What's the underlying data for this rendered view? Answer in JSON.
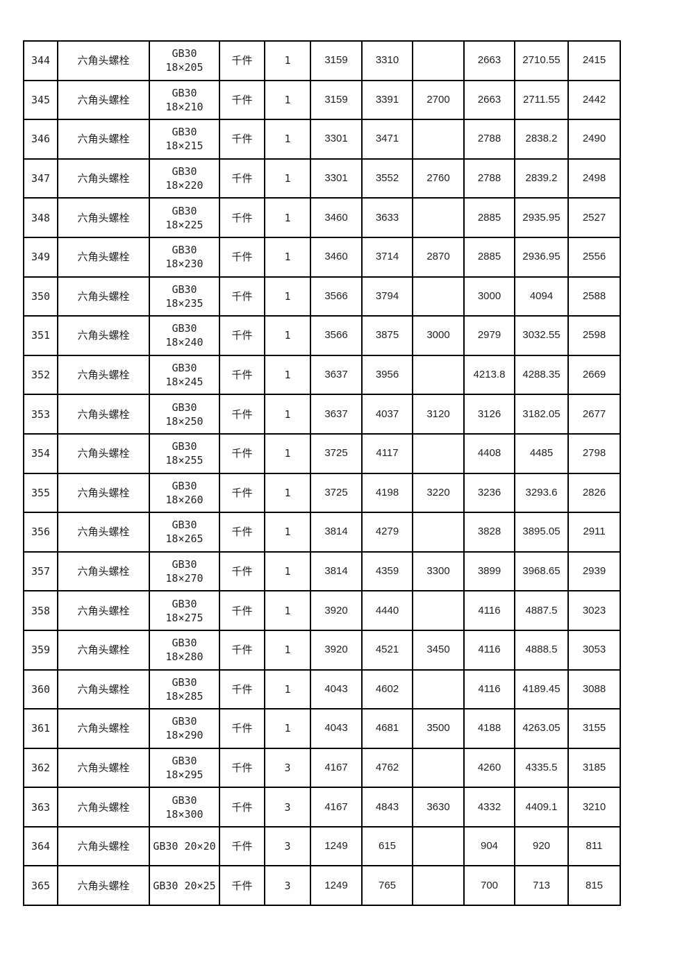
{
  "table": {
    "rows": [
      [
        "344",
        "六角头螺栓",
        "GB30\n18×205",
        "千件",
        "1",
        "3159",
        "3310",
        "",
        "2663",
        "2710.55",
        "2415"
      ],
      [
        "345",
        "六角头螺栓",
        "GB30\n18×210",
        "千件",
        "1",
        "3159",
        "3391",
        "2700",
        "2663",
        "2711.55",
        "2442"
      ],
      [
        "346",
        "六角头螺栓",
        "GB30\n18×215",
        "千件",
        "1",
        "3301",
        "3471",
        "",
        "2788",
        "2838.2",
        "2490"
      ],
      [
        "347",
        "六角头螺栓",
        "GB30\n18×220",
        "千件",
        "1",
        "3301",
        "3552",
        "2760",
        "2788",
        "2839.2",
        "2498"
      ],
      [
        "348",
        "六角头螺栓",
        "GB30\n18×225",
        "千件",
        "1",
        "3460",
        "3633",
        "",
        "2885",
        "2935.95",
        "2527"
      ],
      [
        "349",
        "六角头螺栓",
        "GB30\n18×230",
        "千件",
        "1",
        "3460",
        "3714",
        "2870",
        "2885",
        "2936.95",
        "2556"
      ],
      [
        "350",
        "六角头螺栓",
        "GB30\n18×235",
        "千件",
        "1",
        "3566",
        "3794",
        "",
        "3000",
        "4094",
        "2588"
      ],
      [
        "351",
        "六角头螺栓",
        "GB30\n18×240",
        "千件",
        "1",
        "3566",
        "3875",
        "3000",
        "2979",
        "3032.55",
        "2598"
      ],
      [
        "352",
        "六角头螺栓",
        "GB30\n18×245",
        "千件",
        "1",
        "3637",
        "3956",
        "",
        "4213.8",
        "4288.35",
        "2669"
      ],
      [
        "353",
        "六角头螺栓",
        "GB30\n18×250",
        "千件",
        "1",
        "3637",
        "4037",
        "3120",
        "3126",
        "3182.05",
        "2677"
      ],
      [
        "354",
        "六角头螺栓",
        "GB30\n18×255",
        "千件",
        "1",
        "3725",
        "4117",
        "",
        "4408",
        "4485",
        "2798"
      ],
      [
        "355",
        "六角头螺栓",
        "GB30\n18×260",
        "千件",
        "1",
        "3725",
        "4198",
        "3220",
        "3236",
        "3293.6",
        "2826"
      ],
      [
        "356",
        "六角头螺栓",
        "GB30\n18×265",
        "千件",
        "1",
        "3814",
        "4279",
        "",
        "3828",
        "3895.05",
        "2911"
      ],
      [
        "357",
        "六角头螺栓",
        "GB30\n18×270",
        "千件",
        "1",
        "3814",
        "4359",
        "3300",
        "3899",
        "3968.65",
        "2939"
      ],
      [
        "358",
        "六角头螺栓",
        "GB30\n18×275",
        "千件",
        "1",
        "3920",
        "4440",
        "",
        "4116",
        "4887.5",
        "3023"
      ],
      [
        "359",
        "六角头螺栓",
        "GB30\n18×280",
        "千件",
        "1",
        "3920",
        "4521",
        "3450",
        "4116",
        "4888.5",
        "3053"
      ],
      [
        "360",
        "六角头螺栓",
        "GB30\n18×285",
        "千件",
        "1",
        "4043",
        "4602",
        "",
        "4116",
        "4189.45",
        "3088"
      ],
      [
        "361",
        "六角头螺栓",
        "GB30\n18×290",
        "千件",
        "1",
        "4043",
        "4681",
        "3500",
        "4188",
        "4263.05",
        "3155"
      ],
      [
        "362",
        "六角头螺栓",
        "GB30\n18×295",
        "千件",
        "3",
        "4167",
        "4762",
        "",
        "4260",
        "4335.5",
        "3185"
      ],
      [
        "363",
        "六角头螺栓",
        "GB30\n18×300",
        "千件",
        "3",
        "4167",
        "4843",
        "3630",
        "4332",
        "4409.1",
        "3210"
      ],
      [
        "364",
        "六角头螺栓",
        "GB30 20×20",
        "千件",
        "3",
        "1249",
        "615",
        "",
        "904",
        "920",
        "811"
      ],
      [
        "365",
        "六角头螺栓",
        "GB30 20×25",
        "千件",
        "3",
        "1249",
        "765",
        "",
        "700",
        "713",
        "815"
      ]
    ]
  }
}
